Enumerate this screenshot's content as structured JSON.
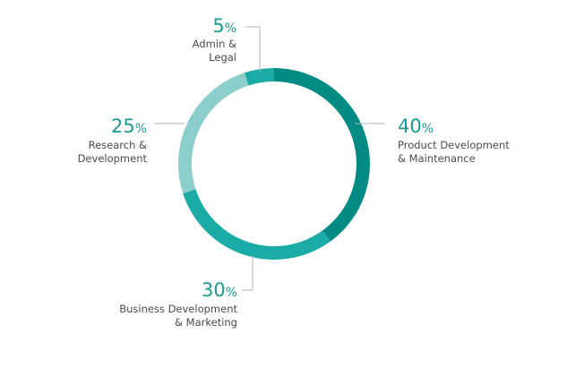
{
  "chart_data": {
    "type": "pie",
    "variant": "donut",
    "title": "",
    "unit_symbol": "%",
    "slices": [
      {
        "label_lines": [
          "Product Development",
          "& Maintenance"
        ],
        "value": 40,
        "color": "#028a84"
      },
      {
        "label_lines": [
          "Business Development",
          "& Marketing"
        ],
        "value": 30,
        "color": "#1aaba6"
      },
      {
        "label_lines": [
          "Research &",
          "Development"
        ],
        "value": 25,
        "color": "#8ccecc"
      },
      {
        "label_lines": [
          "Admin &",
          "Legal"
        ],
        "value": 5,
        "color": "#1aaba6"
      }
    ],
    "start_angle_deg": 0,
    "direction": "clockwise",
    "legend": "none"
  }
}
